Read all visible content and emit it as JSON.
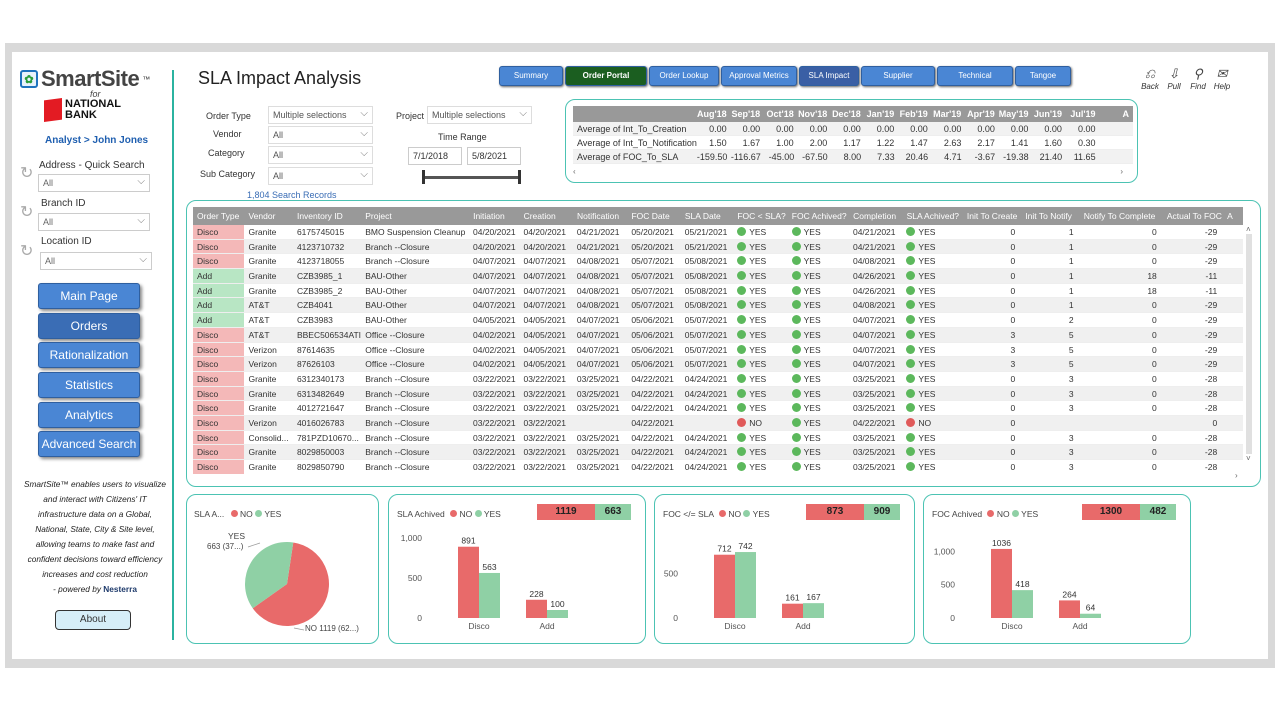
{
  "app": {
    "logo": "SmartSite",
    "tm": "™",
    "for": "for",
    "bank_line1": "NATIONAL",
    "bank_line2": "BANK",
    "analyst": "Analyst > John Jones"
  },
  "sidebar": {
    "filters": [
      {
        "label": "Address - Quick Search",
        "value": "All"
      },
      {
        "label": "Branch ID",
        "value": "All"
      },
      {
        "label": "Location ID",
        "value": "All"
      }
    ],
    "nav": [
      "Main Page",
      "Orders",
      "Rationalization",
      "Statistics",
      "Analytics",
      "Advanced Search"
    ],
    "promo": "SmartSite™ enables users to visualize and interact with Citizens' IT infrastructure data on a Global, National, State, City & Site level, allowing teams to make fast and confident decisions toward efficiency increases and cost reduction",
    "powered": "- powered by",
    "powered_brand": "Nesterra",
    "about": "About"
  },
  "page": {
    "title": "SLA Impact Analysis"
  },
  "tabs": [
    "Summary",
    "Order Portal",
    "Order Lookup",
    "Approval Metrics",
    "SLA Impact",
    "Supplier Contacts",
    "Technical Contacts",
    "Tangoe Tool"
  ],
  "tools": [
    {
      "icon": "back-icon",
      "label": "Back"
    },
    {
      "icon": "pull-icon",
      "label": "Pull"
    },
    {
      "icon": "find-icon",
      "label": "Find"
    },
    {
      "icon": "help-icon",
      "label": "Help"
    }
  ],
  "filters": {
    "order_type": {
      "label": "Order Type",
      "value": "Multiple selections"
    },
    "vendor": {
      "label": "Vendor",
      "value": "All"
    },
    "category": {
      "label": "Category",
      "value": "All"
    },
    "sub_category": {
      "label": "Sub Category",
      "value": "All"
    },
    "project": {
      "label": "Project",
      "value": "Multiple selections"
    },
    "time_range": {
      "label": "Time Range",
      "start": "7/1/2018",
      "end": "5/8/2021"
    },
    "search_records": "1,804 Search Records"
  },
  "matrix": {
    "months": [
      "Aug'18",
      "Sep'18",
      "Oct'18",
      "Nov'18",
      "Dec'18",
      "Jan'19",
      "Feb'19",
      "Mar'19",
      "Apr'19",
      "May'19",
      "Jun'19",
      "Jul'19",
      "A"
    ],
    "rows": [
      {
        "label": "Average of Int_To_Creation",
        "values": [
          "0.00",
          "0.00",
          "0.00",
          "0.00",
          "0.00",
          "0.00",
          "0.00",
          "0.00",
          "0.00",
          "0.00",
          "0.00",
          "0.00",
          ""
        ]
      },
      {
        "label": "Average of Int_To_Notification",
        "values": [
          "1.50",
          "1.67",
          "1.00",
          "2.00",
          "1.17",
          "1.22",
          "1.47",
          "2.63",
          "2.17",
          "1.41",
          "1.60",
          "0.30",
          ""
        ]
      },
      {
        "label": "Average of FOC_To_SLA",
        "values": [
          "-159.50",
          "-116.67",
          "-45.00",
          "-67.50",
          "8.00",
          "7.33",
          "20.46",
          "4.71",
          "-3.67",
          "-19.38",
          "21.40",
          "11.65",
          ""
        ]
      }
    ]
  },
  "table": {
    "headers": [
      "Order Type",
      "Vendor",
      "Inventory ID",
      "Project",
      "Initiation",
      "Creation",
      "Notification",
      "FOC Date",
      "SLA Date",
      "FOC < SLA?",
      "FOC Achived?",
      "Completion",
      "SLA Achived?",
      "Init To Create",
      "Init To Notify",
      "Notify To Complete",
      "Actual To FOC",
      "A"
    ],
    "rows": [
      [
        "Disco",
        "Granite",
        "6175745015",
        "BMO Suspension Cleanup",
        "04/20/2021",
        "04/20/2021",
        "04/21/2021",
        "05/20/2021",
        "05/21/2021",
        "YES",
        "YES",
        "04/21/2021",
        "YES",
        "0",
        "1",
        "0",
        "-29"
      ],
      [
        "Disco",
        "Granite",
        "4123710732",
        "Branch --Closure",
        "04/20/2021",
        "04/20/2021",
        "04/21/2021",
        "05/20/2021",
        "05/21/2021",
        "YES",
        "YES",
        "04/21/2021",
        "YES",
        "0",
        "1",
        "0",
        "-29"
      ],
      [
        "Disco",
        "Granite",
        "4123718055",
        "Branch --Closure",
        "04/07/2021",
        "04/07/2021",
        "04/08/2021",
        "05/07/2021",
        "05/08/2021",
        "YES",
        "YES",
        "04/08/2021",
        "YES",
        "0",
        "1",
        "0",
        "-29"
      ],
      [
        "Add",
        "Granite",
        "CZB3985_1",
        "BAU-Other",
        "04/07/2021",
        "04/07/2021",
        "04/08/2021",
        "05/07/2021",
        "05/08/2021",
        "YES",
        "YES",
        "04/26/2021",
        "YES",
        "0",
        "1",
        "18",
        "-11"
      ],
      [
        "Add",
        "Granite",
        "CZB3985_2",
        "BAU-Other",
        "04/07/2021",
        "04/07/2021",
        "04/08/2021",
        "05/07/2021",
        "05/08/2021",
        "YES",
        "YES",
        "04/26/2021",
        "YES",
        "0",
        "1",
        "18",
        "-11"
      ],
      [
        "Add",
        "AT&T",
        "CZB4041",
        "BAU-Other",
        "04/07/2021",
        "04/07/2021",
        "04/08/2021",
        "05/07/2021",
        "05/08/2021",
        "YES",
        "YES",
        "04/08/2021",
        "YES",
        "0",
        "1",
        "0",
        "-29"
      ],
      [
        "Add",
        "AT&T",
        "CZB3983",
        "BAU-Other",
        "04/05/2021",
        "04/05/2021",
        "04/07/2021",
        "05/06/2021",
        "05/07/2021",
        "YES",
        "YES",
        "04/07/2021",
        "YES",
        "0",
        "2",
        "0",
        "-29"
      ],
      [
        "Disco",
        "AT&T",
        "BBEC506534ATI",
        "Office --Closure",
        "04/02/2021",
        "04/05/2021",
        "04/07/2021",
        "05/06/2021",
        "05/07/2021",
        "YES",
        "YES",
        "04/07/2021",
        "YES",
        "3",
        "5",
        "0",
        "-29"
      ],
      [
        "Disco",
        "Verizon",
        "87614635",
        "Office --Closure",
        "04/02/2021",
        "04/05/2021",
        "04/07/2021",
        "05/06/2021",
        "05/07/2021",
        "YES",
        "YES",
        "04/07/2021",
        "YES",
        "3",
        "5",
        "0",
        "-29"
      ],
      [
        "Disco",
        "Verizon",
        "87626103",
        "Office --Closure",
        "04/02/2021",
        "04/05/2021",
        "04/07/2021",
        "05/06/2021",
        "05/07/2021",
        "YES",
        "YES",
        "04/07/2021",
        "YES",
        "3",
        "5",
        "0",
        "-29"
      ],
      [
        "Disco",
        "Granite",
        "6312340173",
        "Branch --Closure",
        "03/22/2021",
        "03/22/2021",
        "03/25/2021",
        "04/22/2021",
        "04/24/2021",
        "YES",
        "YES",
        "03/25/2021",
        "YES",
        "0",
        "3",
        "0",
        "-28"
      ],
      [
        "Disco",
        "Granite",
        "6313482649",
        "Branch --Closure",
        "03/22/2021",
        "03/22/2021",
        "03/25/2021",
        "04/22/2021",
        "04/24/2021",
        "YES",
        "YES",
        "03/25/2021",
        "YES",
        "0",
        "3",
        "0",
        "-28"
      ],
      [
        "Disco",
        "Granite",
        "4012721647",
        "Branch --Closure",
        "03/22/2021",
        "03/22/2021",
        "03/25/2021",
        "04/22/2021",
        "04/24/2021",
        "YES",
        "YES",
        "03/25/2021",
        "YES",
        "0",
        "3",
        "0",
        "-28"
      ],
      [
        "Disco",
        "Verizon",
        "4016026783",
        "Branch --Closure",
        "03/22/2021",
        "03/22/2021",
        "",
        "04/22/2021",
        "",
        "NO",
        "YES",
        "04/22/2021",
        "NO",
        "0",
        "",
        "",
        "0"
      ],
      [
        "Disco",
        "Consolid...",
        "781PZD10670...",
        "Branch --Closure",
        "03/22/2021",
        "03/22/2021",
        "03/25/2021",
        "04/22/2021",
        "04/24/2021",
        "YES",
        "YES",
        "03/25/2021",
        "YES",
        "0",
        "3",
        "0",
        "-28"
      ],
      [
        "Disco",
        "Granite",
        "8029850003",
        "Branch --Closure",
        "03/22/2021",
        "03/22/2021",
        "03/25/2021",
        "04/22/2021",
        "04/24/2021",
        "YES",
        "YES",
        "03/25/2021",
        "YES",
        "0",
        "3",
        "0",
        "-28"
      ],
      [
        "Disco",
        "Granite",
        "8029850790",
        "Branch --Closure",
        "03/22/2021",
        "03/22/2021",
        "03/25/2021",
        "04/22/2021",
        "04/24/2021",
        "YES",
        "YES",
        "03/25/2021",
        "YES",
        "0",
        "3",
        "0",
        "-28"
      ]
    ]
  },
  "colors": {
    "no": "#e86a6a",
    "yes": "#8fd0a5",
    "accent": "#4cc3b3"
  },
  "chart_data": [
    {
      "type": "pie",
      "title": "SLA A...",
      "legend": [
        "NO",
        "YES"
      ],
      "slices": [
        {
          "name": "NO",
          "value": 1119,
          "label": "NO 1119 (62...)"
        },
        {
          "name": "YES",
          "value": 663,
          "label": "663 (37...)"
        }
      ],
      "yes_label": "YES"
    },
    {
      "type": "bar",
      "title": "SLA Achived",
      "legend": [
        "NO",
        "YES"
      ],
      "badge": {
        "no": "1119",
        "yes": "663"
      },
      "categories": [
        "Disco",
        "Add"
      ],
      "series": [
        {
          "name": "NO",
          "values": [
            891,
            228
          ]
        },
        {
          "name": "YES",
          "values": [
            563,
            100
          ]
        }
      ],
      "yticks": [
        "1,000",
        "500",
        "0"
      ],
      "ylim": [
        0,
        1000
      ]
    },
    {
      "type": "bar",
      "title": "FOC </= SLA",
      "legend": [
        "NO",
        "YES"
      ],
      "badge": {
        "no": "873",
        "yes": "909"
      },
      "categories": [
        "Disco",
        "Add"
      ],
      "series": [
        {
          "name": "NO",
          "values": [
            712,
            161
          ]
        },
        {
          "name": "YES",
          "values": [
            742,
            167
          ]
        }
      ],
      "yticks": [
        "500",
        "0"
      ],
      "ylim": [
        0,
        900
      ]
    },
    {
      "type": "bar",
      "title": "FOC Achived",
      "legend": [
        "NO",
        "YES"
      ],
      "badge": {
        "no": "1300",
        "yes": "482"
      },
      "categories": [
        "Disco",
        "Add"
      ],
      "series": [
        {
          "name": "NO",
          "values": [
            1036,
            264
          ]
        },
        {
          "name": "YES",
          "values": [
            418,
            64
          ]
        }
      ],
      "yticks": [
        "1,000",
        "500",
        "0"
      ],
      "ylim": [
        0,
        1200
      ]
    }
  ]
}
